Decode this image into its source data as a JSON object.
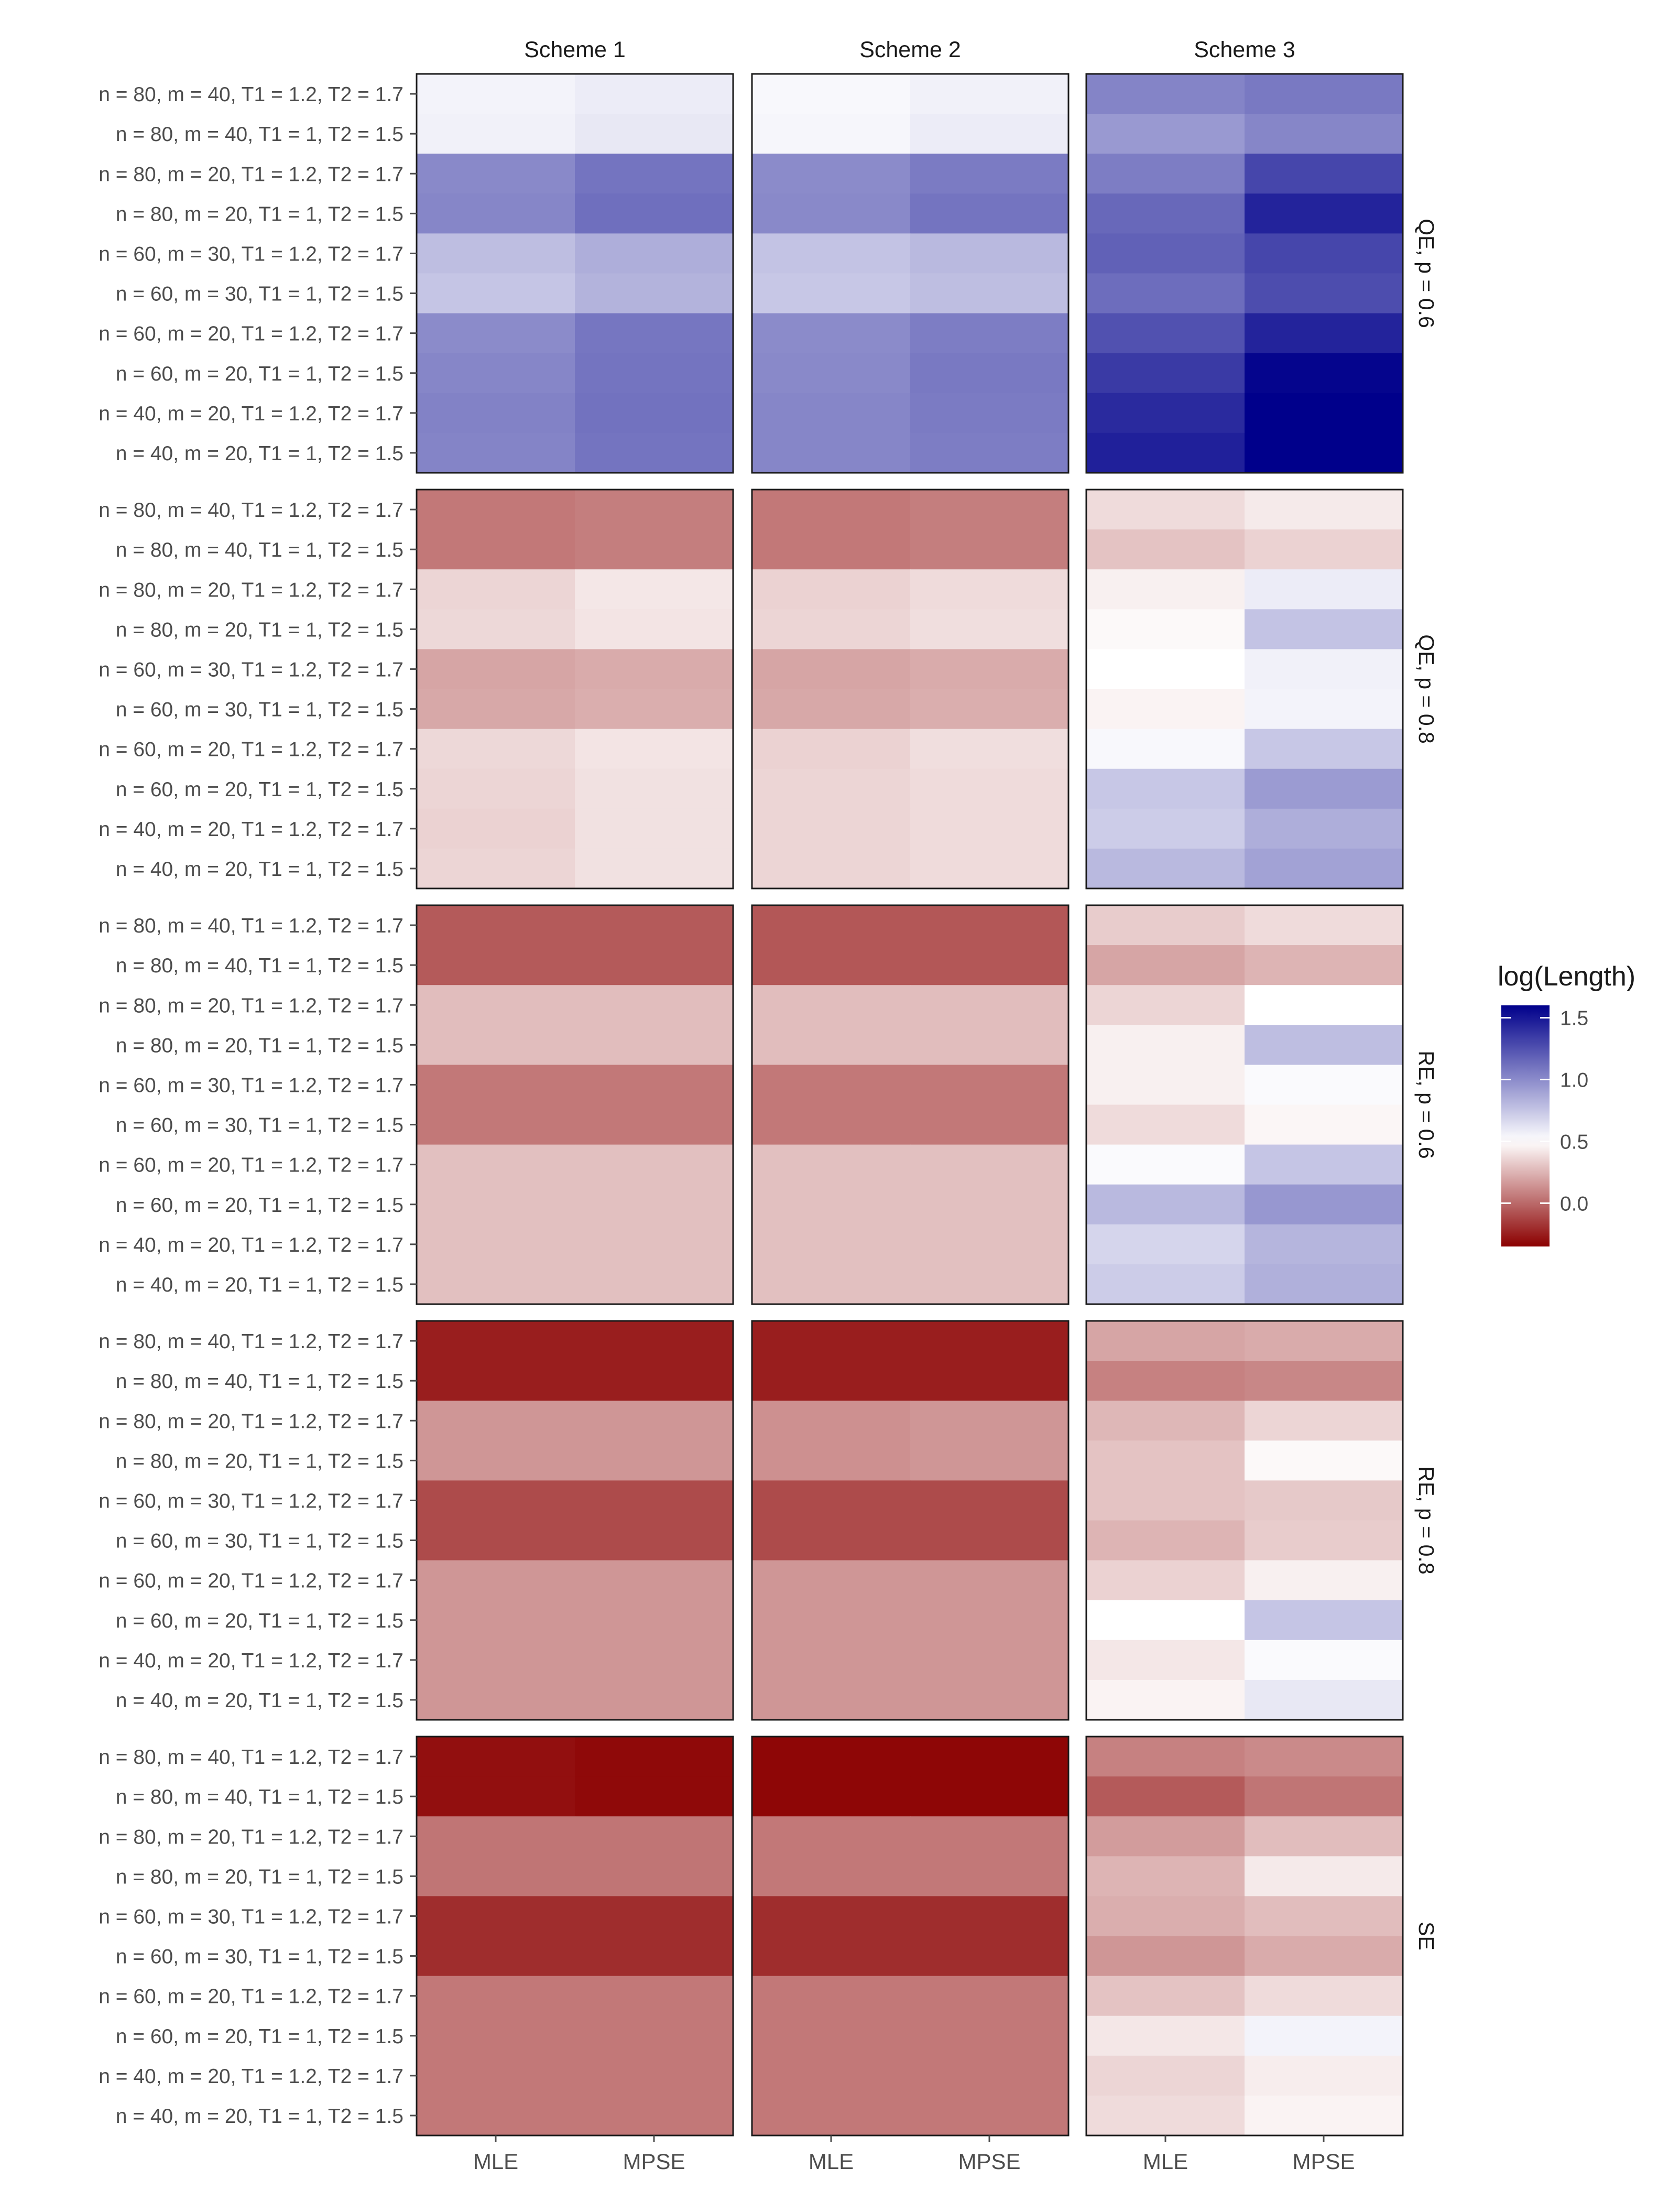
{
  "chart_data": {
    "type": "heatmap",
    "title": "",
    "legend": {
      "title": "log(Length)",
      "ticks": [
        1.5,
        1.0,
        0.5,
        0.0
      ],
      "tick_labels": [
        "1.5",
        "1.0",
        "0.5",
        "0.0"
      ],
      "range": [
        -0.35,
        1.6
      ],
      "midpoint": 0.5,
      "low_color": "#8B0000",
      "mid_color": "#FFFFFF",
      "high_color": "#00008B",
      "placement": "right"
    },
    "columns": [
      {
        "name": "Scheme 1",
        "estimators": [
          "MLE",
          "MPSE"
        ]
      },
      {
        "name": "Scheme 2",
        "estimators": [
          "MLE",
          "MPSE"
        ]
      },
      {
        "name": "Scheme 3",
        "estimators": [
          "MLE",
          "MPSE"
        ]
      }
    ],
    "row_labels": [
      "n = 80, m = 40, T1 = 1.2, T2 = 1.7",
      "n = 80, m = 40, T1 = 1, T2 = 1.5",
      "n = 80, m = 20, T1 = 1.2, T2 = 1.7",
      "n = 80, m = 20, T1 = 1, T2 = 1.5",
      "n = 60, m = 30, T1 = 1.2, T2 = 1.7",
      "n = 60, m = 30, T1 = 1, T2 = 1.5",
      "n = 60, m = 20, T1 = 1.2, T2 = 1.7",
      "n = 60, m = 20, T1 = 1, T2 = 1.5",
      "n = 40, m = 20, T1 = 1.2, T2 = 1.7",
      "n = 40, m = 20, T1 = 1, T2 = 1.5"
    ],
    "x_tick_labels": [
      "MLE",
      "MPSE",
      "MLE",
      "MPSE",
      "MLE",
      "MPSE"
    ],
    "panels": [
      {
        "name": "QE, p = 0.6",
        "values": [
          [
            0.55,
            0.58,
            0.53,
            0.56,
            1.03,
            1.08
          ],
          [
            0.56,
            0.6,
            0.54,
            0.58,
            0.94,
            1.02
          ],
          [
            1.01,
            1.1,
            1.0,
            1.07,
            1.06,
            1.3
          ],
          [
            1.02,
            1.12,
            1.01,
            1.1,
            1.15,
            1.45
          ],
          [
            0.78,
            0.85,
            0.76,
            0.8,
            1.18,
            1.3
          ],
          [
            0.75,
            0.83,
            0.74,
            0.78,
            1.13,
            1.27
          ],
          [
            1.0,
            1.09,
            1.0,
            1.06,
            1.25,
            1.45
          ],
          [
            1.02,
            1.1,
            1.01,
            1.08,
            1.35,
            1.58
          ],
          [
            1.04,
            1.11,
            1.02,
            1.07,
            1.42,
            1.6
          ],
          [
            1.03,
            1.1,
            1.02,
            1.06,
            1.46,
            1.6
          ]
        ]
      },
      {
        "name": "QE, p = 0.8",
        "values": [
          [
            0.05,
            0.07,
            0.05,
            0.07,
            0.38,
            0.43
          ],
          [
            0.05,
            0.07,
            0.05,
            0.07,
            0.3,
            0.35
          ],
          [
            0.36,
            0.42,
            0.35,
            0.38,
            0.45,
            0.58
          ],
          [
            0.37,
            0.41,
            0.36,
            0.39,
            0.48,
            0.76
          ],
          [
            0.2,
            0.22,
            0.2,
            0.22,
            0.5,
            0.56
          ],
          [
            0.21,
            0.23,
            0.21,
            0.23,
            0.46,
            0.55
          ],
          [
            0.37,
            0.41,
            0.35,
            0.39,
            0.53,
            0.74
          ],
          [
            0.36,
            0.4,
            0.36,
            0.38,
            0.74,
            0.93
          ],
          [
            0.35,
            0.4,
            0.36,
            0.38,
            0.72,
            0.85
          ],
          [
            0.36,
            0.4,
            0.36,
            0.38,
            0.8,
            0.9
          ]
        ]
      },
      {
        "name": "RE, p = 0.6",
        "values": [
          [
            -0.05,
            -0.05,
            -0.06,
            -0.06,
            0.33,
            0.38
          ],
          [
            -0.05,
            -0.05,
            -0.06,
            -0.06,
            0.2,
            0.25
          ],
          [
            0.28,
            0.28,
            0.28,
            0.28,
            0.36,
            0.5
          ],
          [
            0.28,
            0.28,
            0.28,
            0.28,
            0.45,
            0.78
          ],
          [
            0.05,
            0.05,
            0.05,
            0.05,
            0.45,
            0.52
          ],
          [
            0.05,
            0.05,
            0.05,
            0.05,
            0.38,
            0.47
          ],
          [
            0.29,
            0.29,
            0.29,
            0.29,
            0.52,
            0.75
          ],
          [
            0.29,
            0.29,
            0.29,
            0.29,
            0.8,
            0.95
          ],
          [
            0.29,
            0.29,
            0.29,
            0.29,
            0.68,
            0.82
          ],
          [
            0.29,
            0.29,
            0.29,
            0.29,
            0.72,
            0.84
          ]
        ]
      },
      {
        "name": "RE, p = 0.8",
        "values": [
          [
            -0.25,
            -0.25,
            -0.25,
            -0.25,
            0.2,
            0.22
          ],
          [
            -0.25,
            -0.25,
            -0.25,
            -0.25,
            0.08,
            0.1
          ],
          [
            0.15,
            0.15,
            0.13,
            0.15,
            0.26,
            0.36
          ],
          [
            0.15,
            0.15,
            0.13,
            0.15,
            0.3,
            0.48
          ],
          [
            -0.1,
            -0.1,
            -0.1,
            -0.1,
            0.3,
            0.32
          ],
          [
            -0.1,
            -0.1,
            -0.1,
            -0.1,
            0.25,
            0.33
          ],
          [
            0.15,
            0.15,
            0.15,
            0.15,
            0.35,
            0.45
          ],
          [
            0.15,
            0.15,
            0.15,
            0.15,
            0.5,
            0.75
          ],
          [
            0.15,
            0.15,
            0.15,
            0.15,
            0.42,
            0.52
          ],
          [
            0.15,
            0.15,
            0.15,
            0.15,
            0.46,
            0.6
          ]
        ]
      },
      {
        "name": "SE",
        "values": [
          [
            -0.3,
            -0.32,
            -0.33,
            -0.33,
            0.08,
            0.11
          ],
          [
            -0.3,
            -0.32,
            -0.33,
            -0.33,
            -0.05,
            0.04
          ],
          [
            0.04,
            0.04,
            0.05,
            0.05,
            0.17,
            0.28
          ],
          [
            0.04,
            0.04,
            0.05,
            0.05,
            0.25,
            0.43
          ],
          [
            -0.2,
            -0.2,
            -0.2,
            -0.2,
            0.23,
            0.28
          ],
          [
            -0.2,
            -0.2,
            -0.2,
            -0.2,
            0.15,
            0.22
          ],
          [
            0.05,
            0.05,
            0.05,
            0.05,
            0.3,
            0.38
          ],
          [
            0.05,
            0.05,
            0.05,
            0.05,
            0.42,
            0.55
          ],
          [
            0.05,
            0.05,
            0.05,
            0.05,
            0.36,
            0.44
          ],
          [
            0.05,
            0.05,
            0.05,
            0.05,
            0.38,
            0.46
          ]
        ]
      }
    ]
  }
}
